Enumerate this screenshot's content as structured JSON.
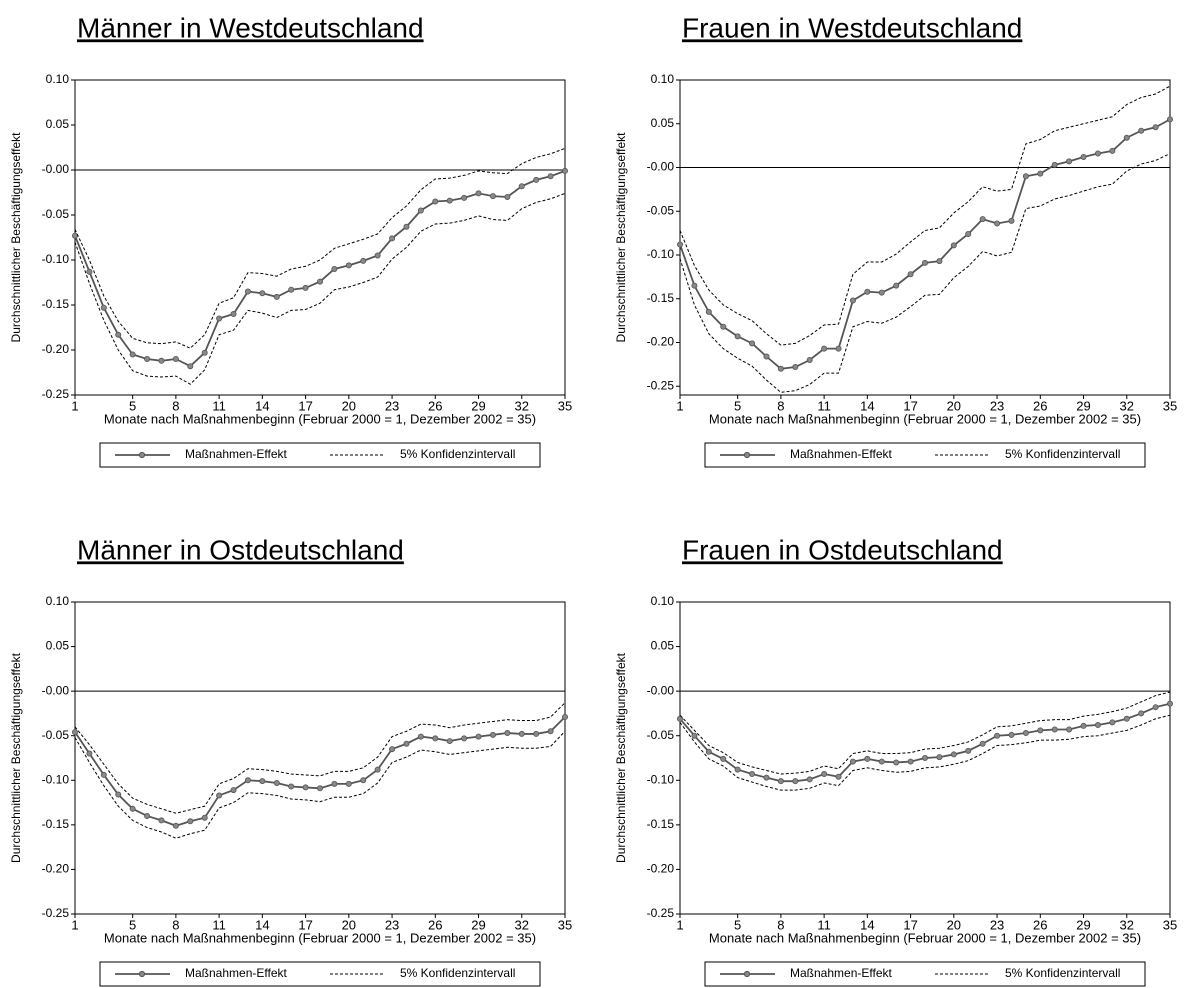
{
  "chart_data": [
    {
      "type": "line",
      "title": "Männer in Westdeutschland",
      "xlabel": "Monate nach Maßnahmenbeginn (Februar 2000 = 1, Dezember 2002 = 35)",
      "ylabel": "Durchschnittlicher Beschäftigungseffekt",
      "x": [
        1,
        2,
        3,
        4,
        5,
        6,
        7,
        8,
        9,
        10,
        11,
        12,
        13,
        14,
        15,
        16,
        17,
        18,
        19,
        20,
        21,
        22,
        23,
        24,
        25,
        26,
        27,
        28,
        29,
        30,
        31,
        32,
        33,
        34,
        35
      ],
      "series": [
        {
          "name": "Maßnahmen-Effekt",
          "color": "#555555",
          "values": [
            -0.073,
            -0.113,
            -0.153,
            -0.183,
            -0.205,
            -0.21,
            -0.212,
            -0.21,
            -0.218,
            -0.203,
            -0.165,
            -0.16,
            -0.135,
            -0.137,
            -0.141,
            -0.133,
            -0.131,
            -0.124,
            -0.11,
            -0.106,
            -0.101,
            -0.095,
            -0.076,
            -0.063,
            -0.045,
            -0.035,
            -0.034,
            -0.031,
            -0.026,
            -0.029,
            -0.03,
            -0.018,
            -0.011,
            -0.007,
            -0.001
          ]
        },
        {
          "name": "5% Konfidenzintervall",
          "color": "#000000",
          "upper": [
            -0.066,
            -0.1,
            -0.14,
            -0.168,
            -0.187,
            -0.192,
            -0.193,
            -0.191,
            -0.198,
            -0.183,
            -0.148,
            -0.142,
            -0.114,
            -0.115,
            -0.118,
            -0.11,
            -0.107,
            -0.1,
            -0.087,
            -0.082,
            -0.077,
            -0.071,
            -0.053,
            -0.04,
            -0.022,
            -0.01,
            -0.009,
            -0.006,
            -0.001,
            -0.003,
            -0.004,
            0.007,
            0.014,
            0.018,
            0.024
          ],
          "lower": [
            -0.08,
            -0.126,
            -0.167,
            -0.2,
            -0.223,
            -0.229,
            -0.23,
            -0.229,
            -0.238,
            -0.222,
            -0.183,
            -0.178,
            -0.156,
            -0.159,
            -0.164,
            -0.156,
            -0.155,
            -0.148,
            -0.133,
            -0.13,
            -0.125,
            -0.119,
            -0.099,
            -0.086,
            -0.068,
            -0.06,
            -0.059,
            -0.056,
            -0.051,
            -0.055,
            -0.056,
            -0.043,
            -0.036,
            -0.032,
            -0.026
          ]
        }
      ],
      "xlim": [
        1,
        35
      ],
      "xticks": [
        1,
        5,
        8,
        11,
        14,
        17,
        20,
        23,
        26,
        29,
        32,
        35
      ],
      "ylim": [
        -0.25,
        0.1
      ],
      "yticks": [
        {
          "value": 0.1,
          "label": "0.10"
        },
        {
          "value": 0.05,
          "label": "0.05"
        },
        {
          "value": 0,
          "label": "-0.00"
        },
        {
          "value": -0.05,
          "label": "-0.05"
        },
        {
          "value": -0.1,
          "label": "-0.10"
        },
        {
          "value": -0.15,
          "label": "-0.15"
        },
        {
          "value": -0.2,
          "label": "-0.20"
        },
        {
          "value": -0.25,
          "label": "-0.25"
        }
      ],
      "reference_line": 0,
      "grid": false
    },
    {
      "type": "line",
      "title": "Frauen in Westdeutschland",
      "xlabel": "Monate nach Maßnahmenbeginn (Februar 2000 = 1, Dezember 2002 = 35)",
      "ylabel": "Durchschnittlicher Beschäftigungseffekt",
      "x": [
        1,
        2,
        3,
        4,
        5,
        6,
        7,
        8,
        9,
        10,
        11,
        12,
        13,
        14,
        15,
        16,
        17,
        18,
        19,
        20,
        21,
        22,
        23,
        24,
        25,
        26,
        27,
        28,
        29,
        30,
        31,
        32,
        33,
        34,
        35
      ],
      "series": [
        {
          "name": "Maßnahmen-Effekt",
          "color": "#555555",
          "values": [
            -0.088,
            -0.135,
            -0.165,
            -0.182,
            -0.193,
            -0.201,
            -0.216,
            -0.23,
            -0.228,
            -0.22,
            -0.207,
            -0.207,
            -0.152,
            -0.142,
            -0.143,
            -0.135,
            -0.122,
            -0.109,
            -0.107,
            -0.089,
            -0.076,
            -0.059,
            -0.064,
            -0.061,
            -0.01,
            -0.007,
            0.003,
            0.007,
            0.012,
            0.016,
            0.019,
            0.034,
            0.042,
            0.046,
            0.055
          ]
        },
        {
          "name": "5% Konfidenzintervall",
          "color": "#000000",
          "upper": [
            -0.072,
            -0.112,
            -0.14,
            -0.157,
            -0.167,
            -0.175,
            -0.19,
            -0.203,
            -0.201,
            -0.192,
            -0.18,
            -0.179,
            -0.122,
            -0.108,
            -0.108,
            -0.099,
            -0.085,
            -0.072,
            -0.069,
            -0.052,
            -0.039,
            -0.022,
            -0.027,
            -0.025,
            0.027,
            0.032,
            0.042,
            0.046,
            0.05,
            0.054,
            0.058,
            0.072,
            0.08,
            0.084,
            0.093
          ],
          "lower": [
            -0.104,
            -0.157,
            -0.19,
            -0.207,
            -0.218,
            -0.227,
            -0.243,
            -0.257,
            -0.255,
            -0.248,
            -0.235,
            -0.235,
            -0.182,
            -0.176,
            -0.178,
            -0.171,
            -0.159,
            -0.146,
            -0.145,
            -0.126,
            -0.113,
            -0.096,
            -0.101,
            -0.097,
            -0.047,
            -0.044,
            -0.036,
            -0.032,
            -0.027,
            -0.022,
            -0.019,
            -0.004,
            0.004,
            0.008,
            0.016
          ]
        }
      ],
      "xlim": [
        1,
        35
      ],
      "xticks": [
        1,
        5,
        8,
        11,
        14,
        17,
        20,
        23,
        26,
        29,
        32,
        35
      ],
      "ylim": [
        -0.26,
        0.1
      ],
      "yticks": [
        {
          "value": 0.1,
          "label": "0.10"
        },
        {
          "value": 0.05,
          "label": "0.05"
        },
        {
          "value": 0,
          "label": "-0.00"
        },
        {
          "value": -0.05,
          "label": "-0.05"
        },
        {
          "value": -0.1,
          "label": "-0.10"
        },
        {
          "value": -0.15,
          "label": "-0.15"
        },
        {
          "value": -0.2,
          "label": "-0.20"
        },
        {
          "value": -0.25,
          "label": "-0.25"
        }
      ],
      "reference_line": 0,
      "grid": false
    },
    {
      "type": "line",
      "title": "Männer in Ostdeutschland",
      "xlabel": "Monate nach Maßnahmenbeginn (Februar 2000 = 1, Dezember 2002 = 35)",
      "ylabel": "Durchschnittlicher Beschäftigungseffekt",
      "x": [
        1,
        2,
        3,
        4,
        5,
        6,
        7,
        8,
        9,
        10,
        11,
        12,
        13,
        14,
        15,
        16,
        17,
        18,
        19,
        20,
        21,
        22,
        23,
        24,
        25,
        26,
        27,
        28,
        29,
        30,
        31,
        32,
        33,
        34,
        35
      ],
      "series": [
        {
          "name": "Maßnahmen-Effekt",
          "color": "#555555",
          "values": [
            -0.046,
            -0.07,
            -0.094,
            -0.116,
            -0.132,
            -0.14,
            -0.145,
            -0.151,
            -0.146,
            -0.142,
            -0.117,
            -0.111,
            -0.1,
            -0.101,
            -0.103,
            -0.107,
            -0.108,
            -0.109,
            -0.104,
            -0.104,
            -0.1,
            -0.088,
            -0.065,
            -0.059,
            -0.051,
            -0.053,
            -0.056,
            -0.053,
            -0.051,
            -0.049,
            -0.047,
            -0.048,
            -0.048,
            -0.045,
            -0.029
          ]
        },
        {
          "name": "5% Konfidenzintervall",
          "color": "#000000",
          "upper": [
            -0.04,
            -0.06,
            -0.082,
            -0.104,
            -0.12,
            -0.127,
            -0.132,
            -0.137,
            -0.133,
            -0.129,
            -0.104,
            -0.098,
            -0.087,
            -0.088,
            -0.09,
            -0.093,
            -0.094,
            -0.095,
            -0.09,
            -0.09,
            -0.086,
            -0.074,
            -0.051,
            -0.045,
            -0.037,
            -0.038,
            -0.041,
            -0.038,
            -0.036,
            -0.034,
            -0.032,
            -0.033,
            -0.033,
            -0.029,
            -0.013
          ],
          "lower": [
            -0.052,
            -0.08,
            -0.106,
            -0.129,
            -0.145,
            -0.153,
            -0.158,
            -0.165,
            -0.16,
            -0.156,
            -0.131,
            -0.125,
            -0.114,
            -0.115,
            -0.117,
            -0.121,
            -0.122,
            -0.124,
            -0.119,
            -0.119,
            -0.115,
            -0.103,
            -0.08,
            -0.074,
            -0.066,
            -0.068,
            -0.071,
            -0.069,
            -0.067,
            -0.065,
            -0.063,
            -0.064,
            -0.064,
            -0.062,
            -0.045
          ]
        }
      ],
      "xlim": [
        1,
        35
      ],
      "xticks": [
        1,
        5,
        8,
        11,
        14,
        17,
        20,
        23,
        26,
        29,
        32,
        35
      ],
      "ylim": [
        -0.25,
        0.1
      ],
      "yticks": [
        {
          "value": 0.1,
          "label": "0.10"
        },
        {
          "value": 0.05,
          "label": "0.05"
        },
        {
          "value": 0,
          "label": "-0.00"
        },
        {
          "value": -0.05,
          "label": "-0.05"
        },
        {
          "value": -0.1,
          "label": "-0.10"
        },
        {
          "value": -0.15,
          "label": "-0.15"
        },
        {
          "value": -0.2,
          "label": "-0.20"
        },
        {
          "value": -0.25,
          "label": "-0.25"
        }
      ],
      "reference_line": 0,
      "grid": false
    },
    {
      "type": "line",
      "title": "Frauen in Ostdeutschland",
      "xlabel": "Monate nach Maßnahmenbeginn (Februar 2000 = 1, Dezember 2002 = 35)",
      "ylabel": "Durchschnittlicher Beschäftigungseffekt",
      "x": [
        1,
        2,
        3,
        4,
        5,
        6,
        7,
        8,
        9,
        10,
        11,
        12,
        13,
        14,
        15,
        16,
        17,
        18,
        19,
        20,
        21,
        22,
        23,
        24,
        25,
        26,
        27,
        28,
        29,
        30,
        31,
        32,
        33,
        34,
        35
      ],
      "series": [
        {
          "name": "Maßnahmen-Effekt",
          "color": "#555555",
          "values": [
            -0.031,
            -0.05,
            -0.068,
            -0.076,
            -0.088,
            -0.093,
            -0.097,
            -0.101,
            -0.101,
            -0.099,
            -0.093,
            -0.096,
            -0.079,
            -0.076,
            -0.079,
            -0.08,
            -0.079,
            -0.075,
            -0.074,
            -0.071,
            -0.067,
            -0.059,
            -0.05,
            -0.049,
            -0.047,
            -0.044,
            -0.043,
            -0.043,
            -0.039,
            -0.038,
            -0.035,
            -0.031,
            -0.025,
            -0.018,
            -0.014
          ]
        },
        {
          "name": "5% Konfidenzintervall",
          "color": "#000000",
          "upper": [
            -0.027,
            -0.044,
            -0.061,
            -0.069,
            -0.08,
            -0.085,
            -0.089,
            -0.093,
            -0.092,
            -0.09,
            -0.084,
            -0.087,
            -0.07,
            -0.067,
            -0.07,
            -0.07,
            -0.069,
            -0.065,
            -0.064,
            -0.061,
            -0.057,
            -0.049,
            -0.04,
            -0.039,
            -0.036,
            -0.033,
            -0.032,
            -0.032,
            -0.028,
            -0.026,
            -0.023,
            -0.019,
            -0.012,
            -0.005,
            -0.001
          ],
          "lower": [
            -0.035,
            -0.057,
            -0.076,
            -0.084,
            -0.097,
            -0.102,
            -0.107,
            -0.111,
            -0.111,
            -0.109,
            -0.103,
            -0.106,
            -0.089,
            -0.086,
            -0.089,
            -0.091,
            -0.09,
            -0.086,
            -0.085,
            -0.082,
            -0.078,
            -0.07,
            -0.061,
            -0.06,
            -0.058,
            -0.055,
            -0.055,
            -0.054,
            -0.051,
            -0.05,
            -0.047,
            -0.044,
            -0.038,
            -0.031,
            -0.027
          ]
        }
      ],
      "xlim": [
        1,
        35
      ],
      "xticks": [
        1,
        5,
        8,
        11,
        14,
        17,
        20,
        23,
        26,
        29,
        32,
        35
      ],
      "ylim": [
        -0.25,
        0.1
      ],
      "yticks": [
        {
          "value": 0.1,
          "label": "0.10"
        },
        {
          "value": 0.05,
          "label": "0.05"
        },
        {
          "value": 0,
          "label": "-0.00"
        },
        {
          "value": -0.05,
          "label": "-0.05"
        },
        {
          "value": -0.1,
          "label": "-0.10"
        },
        {
          "value": -0.15,
          "label": "-0.15"
        },
        {
          "value": -0.2,
          "label": "-0.20"
        },
        {
          "value": -0.25,
          "label": "-0.25"
        }
      ],
      "reference_line": 0,
      "grid": false
    }
  ]
}
